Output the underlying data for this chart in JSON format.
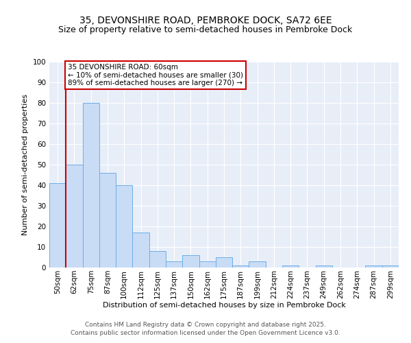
{
  "title1": "35, DEVONSHIRE ROAD, PEMBROKE DOCK, SA72 6EE",
  "title2": "Size of property relative to semi-detached houses in Pembroke Dock",
  "xlabel": "Distribution of semi-detached houses by size in Pembroke Dock",
  "ylabel": "Number of semi-detached properties",
  "categories": [
    "50sqm",
    "62sqm",
    "75sqm",
    "87sqm",
    "100sqm",
    "112sqm",
    "125sqm",
    "137sqm",
    "150sqm",
    "162sqm",
    "175sqm",
    "187sqm",
    "199sqm",
    "212sqm",
    "224sqm",
    "237sqm",
    "249sqm",
    "262sqm",
    "274sqm",
    "287sqm",
    "299sqm"
  ],
  "values": [
    41,
    50,
    80,
    46,
    40,
    17,
    8,
    3,
    6,
    3,
    5,
    1,
    3,
    0,
    1,
    0,
    1,
    0,
    0,
    1,
    1
  ],
  "bar_color": "#c9dcf5",
  "bar_edge_color": "#6aaee8",
  "highlight_color": "#cc0000",
  "annotation_title": "35 DEVONSHIRE ROAD: 60sqm",
  "annotation_line1": "← 10% of semi-detached houses are smaller (30)",
  "annotation_line2": "89% of semi-detached houses are larger (270) →",
  "annotation_box_facecolor": "#ffffff",
  "annotation_box_edgecolor": "#cc0000",
  "ylim": [
    0,
    100
  ],
  "yticks": [
    0,
    10,
    20,
    30,
    40,
    50,
    60,
    70,
    80,
    90,
    100
  ],
  "footer1": "Contains HM Land Registry data © Crown copyright and database right 2025.",
  "footer2": "Contains public sector information licensed under the Open Government Licence v3.0.",
  "bg_color": "#e8eef8",
  "fig_bg_color": "#ffffff",
  "title_fontsize": 10,
  "subtitle_fontsize": 9,
  "axis_label_fontsize": 8,
  "tick_fontsize": 7.5,
  "annotation_fontsize": 7.5,
  "footer_fontsize": 6.5
}
